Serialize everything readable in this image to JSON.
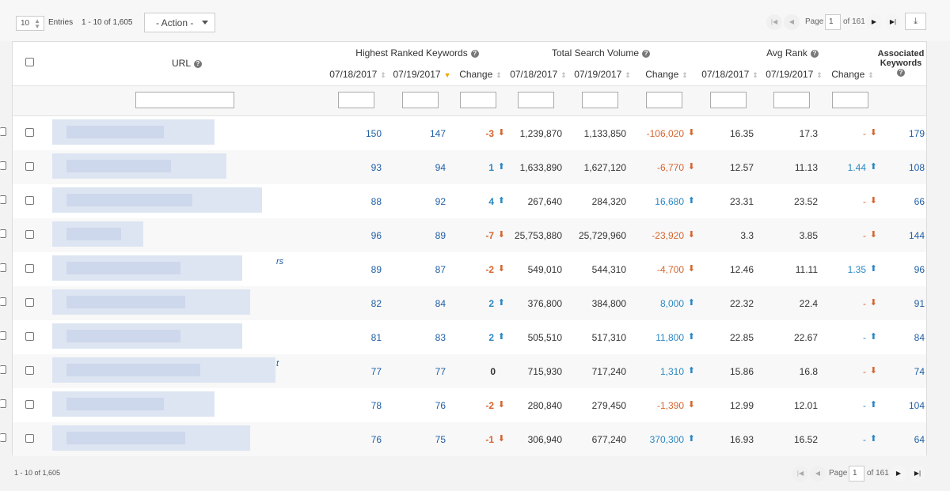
{
  "toolbar": {
    "entries_value": "10",
    "entries_label": "Entries",
    "range_text": "1 - 10 of 1,605",
    "action_label": "- Action -",
    "page_label": "Page",
    "page_value": "1",
    "of_pages": "of 161",
    "first_icon": "first-page-icon",
    "prev_icon": "prev-page-icon",
    "next_icon": "next-page-icon",
    "last_icon": "last-page-icon",
    "download_icon": "download-icon"
  },
  "header": {
    "url": "URL",
    "highest_ranked": "Highest Ranked Keywords",
    "total_volume": "Total Search Volume",
    "avg_rank": "Avg Rank",
    "associated_line1": "Associated",
    "associated_line2": "Keywords",
    "date1": "07/18/2017",
    "date2": "07/19/2017",
    "change": "Change"
  },
  "rows": [
    {
      "hr1": "150",
      "hr2": "147",
      "hrc": "-3",
      "hrd": "down",
      "tv1": "1,239,870",
      "tv2": "1,133,850",
      "tvc": "-106,020",
      "tvd": "down",
      "ar1": "16.35",
      "ar2": "17.3",
      "arc": "-",
      "ard": "down",
      "ak": "179"
    },
    {
      "hr1": "93",
      "hr2": "94",
      "hrc": "1",
      "hrd": "up",
      "tv1": "1,633,890",
      "tv2": "1,627,120",
      "tvc": "-6,770",
      "tvd": "down",
      "ar1": "12.57",
      "ar2": "11.13",
      "arc": "1.44",
      "ard": "up",
      "ak": "108"
    },
    {
      "hr1": "88",
      "hr2": "92",
      "hrc": "4",
      "hrd": "up",
      "tv1": "267,640",
      "tv2": "284,320",
      "tvc": "16,680",
      "tvd": "up",
      "ar1": "23.31",
      "ar2": "23.52",
      "arc": "-",
      "ard": "down",
      "ak": "66"
    },
    {
      "hr1": "96",
      "hr2": "89",
      "hrc": "-7",
      "hrd": "down",
      "tv1": "25,753,880",
      "tv2": "25,729,960",
      "tvc": "-23,920",
      "tvd": "down",
      "ar1": "3.3",
      "ar2": "3.85",
      "arc": "-",
      "ard": "down",
      "ak": "144"
    },
    {
      "hr1": "89",
      "hr2": "87",
      "hrc": "-2",
      "hrd": "down",
      "tv1": "549,010",
      "tv2": "544,310",
      "tvc": "-4,700",
      "tvd": "down",
      "ar1": "12.46",
      "ar2": "11.11",
      "arc": "1.35",
      "ard": "up",
      "ak": "96"
    },
    {
      "hr1": "82",
      "hr2": "84",
      "hrc": "2",
      "hrd": "up",
      "tv1": "376,800",
      "tv2": "384,800",
      "tvc": "8,000",
      "tvd": "up",
      "ar1": "22.32",
      "ar2": "22.4",
      "arc": "-",
      "ard": "down",
      "ak": "91"
    },
    {
      "hr1": "81",
      "hr2": "83",
      "hrc": "2",
      "hrd": "up",
      "tv1": "505,510",
      "tv2": "517,310",
      "tvc": "11,800",
      "tvd": "up",
      "ar1": "22.85",
      "ar2": "22.67",
      "arc": "-",
      "ard": "up",
      "ak": "84"
    },
    {
      "hr1": "77",
      "hr2": "77",
      "hrc": "0",
      "hrd": "none",
      "tv1": "715,930",
      "tv2": "717,240",
      "tvc": "1,310",
      "tvd": "up",
      "ar1": "15.86",
      "ar2": "16.8",
      "arc": "-",
      "ard": "down",
      "ak": "74"
    },
    {
      "hr1": "78",
      "hr2": "76",
      "hrc": "-2",
      "hrd": "down",
      "tv1": "280,840",
      "tv2": "279,450",
      "tvc": "-1,390",
      "tvd": "down",
      "ar1": "12.99",
      "ar2": "12.01",
      "arc": "-",
      "ard": "up",
      "ak": "104"
    },
    {
      "hr1": "76",
      "hr2": "75",
      "hrc": "-1",
      "hrd": "down",
      "tv1": "306,940",
      "tv2": "677,240",
      "tvc": "370,300",
      "tvd": "up",
      "ar1": "16.93",
      "ar2": "16.52",
      "arc": "-",
      "ard": "up",
      "ak": "64"
    }
  ],
  "url_fragments": [
    "rs",
    "t"
  ],
  "footer": {
    "range_text": "1 - 10 of 1,605",
    "page_label": "Page",
    "page_value": "1",
    "of_pages": "of 161"
  },
  "colors": {
    "up": "#2b88c4",
    "down": "#d7642e",
    "link": "#1f5fa6",
    "sort_active": "#f0a500"
  }
}
